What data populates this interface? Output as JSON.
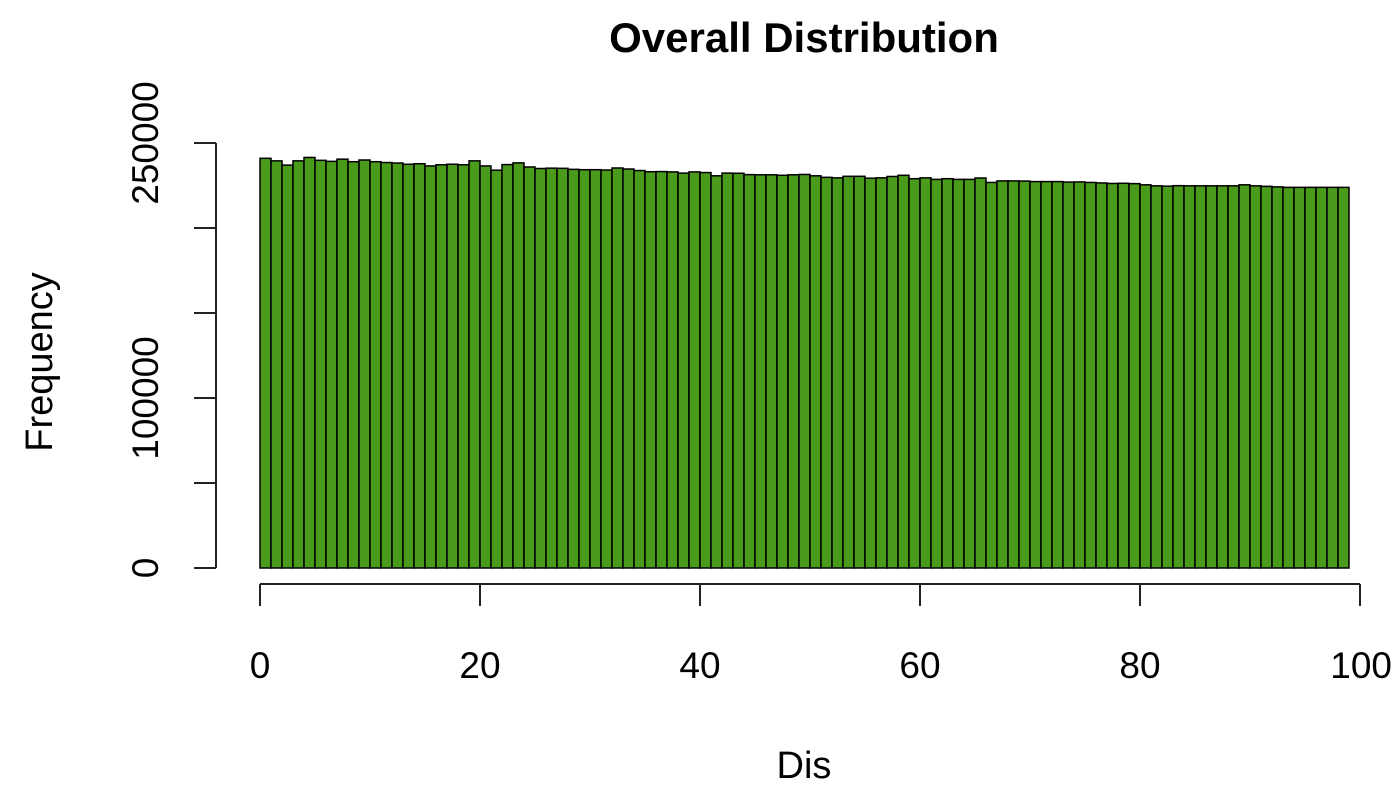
{
  "colors": {
    "bar_fill": "#4a9a1c",
    "bar_stroke": "#000000",
    "axis": "#222222",
    "text": "#000000"
  },
  "chart_data": {
    "type": "bar",
    "title": "Overall Distribution",
    "xlabel": "Dis",
    "ylabel": "Frequency",
    "xlim": [
      0,
      100
    ],
    "ylim": [
      0,
      250000
    ],
    "x_ticks": [
      0,
      20,
      40,
      60,
      80,
      100
    ],
    "x_tick_labels": [
      "0",
      "20",
      "40",
      "60",
      "80",
      "100"
    ],
    "y_ticks": [
      0,
      50000,
      100000,
      150000,
      200000,
      250000
    ],
    "y_tick_labels": [
      "0",
      "",
      "100000",
      "",
      "",
      "250000"
    ],
    "bin_width": 1,
    "bin_starts": [
      0,
      1,
      2,
      3,
      4,
      5,
      6,
      7,
      8,
      9,
      10,
      11,
      12,
      13,
      14,
      15,
      16,
      17,
      18,
      19,
      20,
      21,
      22,
      23,
      24,
      25,
      26,
      27,
      28,
      29,
      30,
      31,
      32,
      33,
      34,
      35,
      36,
      37,
      38,
      39,
      40,
      41,
      42,
      43,
      44,
      45,
      46,
      47,
      48,
      49,
      50,
      51,
      52,
      53,
      54,
      55,
      56,
      57,
      58,
      59,
      60,
      61,
      62,
      63,
      64,
      65,
      66,
      67,
      68,
      69,
      70,
      71,
      72,
      73,
      74,
      75,
      76,
      77,
      78,
      79,
      80,
      81,
      82,
      83,
      84,
      85,
      86,
      87,
      88,
      89,
      90,
      91,
      92,
      93,
      94,
      95,
      96,
      97,
      98
    ],
    "values": [
      241000,
      239500,
      237000,
      239500,
      241500,
      239800,
      239200,
      240500,
      239000,
      240000,
      239000,
      238500,
      238200,
      237500,
      237800,
      236500,
      237200,
      237500,
      237200,
      239500,
      236500,
      234000,
      237300,
      238300,
      235900,
      235000,
      235200,
      235100,
      234500,
      234300,
      234300,
      234100,
      235300,
      234700,
      233800,
      233100,
      233200,
      233000,
      232300,
      233000,
      232600,
      230700,
      232300,
      232200,
      231400,
      231300,
      231300,
      231000,
      231300,
      231500,
      230700,
      229800,
      229500,
      230400,
      230400,
      229300,
      229500,
      230300,
      231000,
      229000,
      229500,
      228600,
      229000,
      228600,
      228600,
      229400,
      226800,
      227700,
      227700,
      227600,
      227300,
      227300,
      227300,
      227000,
      227100,
      226800,
      226500,
      226200,
      226300,
      226100,
      225400,
      224800,
      224600,
      224900,
      224800,
      224800,
      224800,
      224800,
      224800,
      225400,
      224800,
      224500,
      224200,
      223900,
      223900,
      223900,
      223900,
      223900,
      223900
    ]
  }
}
